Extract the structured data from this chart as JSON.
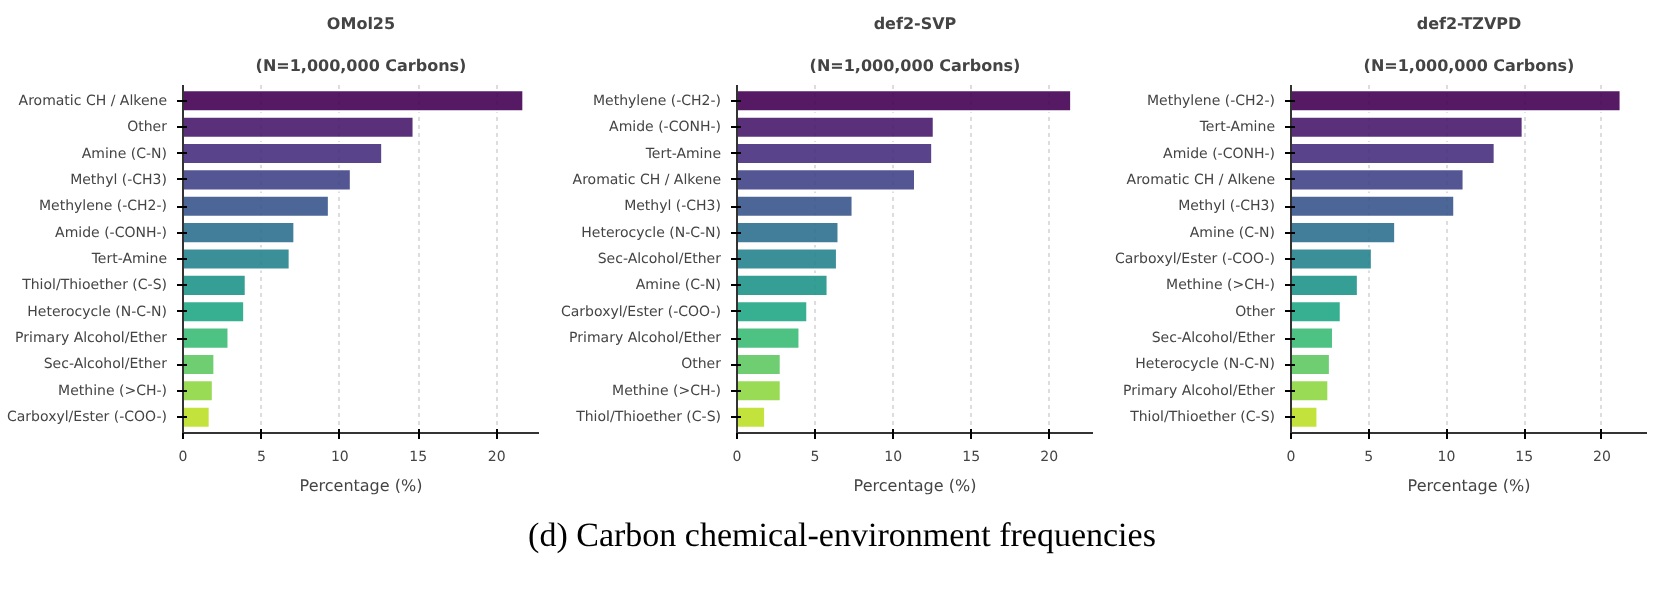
{
  "chart_data": [
    {
      "type": "bar",
      "orientation": "horizontal",
      "title": "OMol25",
      "subtitle": "(N=1,000,000 Carbons)",
      "xlabel": "Percentage (%)",
      "categories": [
        "Aromatic CH / Alkene",
        "Other",
        "Amine (C-N)",
        "Methyl (-CH3)",
        "Methylene (-CH2-)",
        "Amide (-CONH-)",
        "Tert-Amine",
        "Thiol/Thioether (C-S)",
        "Heterocycle (N-C-N)",
        "Primary Alcohol/Ether",
        "Sec-Alcohol/Ether",
        "Methine (>CH-)",
        "Carboxyl/Ester (-COO-)"
      ],
      "values": [
        21.7,
        14.7,
        12.7,
        10.7,
        9.3,
        7.1,
        6.8,
        4.0,
        3.9,
        2.9,
        2.0,
        1.9,
        1.7
      ],
      "colors": [
        "#440154",
        "#481a6c",
        "#472f7d",
        "#414487",
        "#39568c",
        "#2d708e",
        "#25838e",
        "#1f958b",
        "#21a685",
        "#3bbb75",
        "#5ec962",
        "#8fd744",
        "#bddf26"
      ],
      "xlim": [
        0,
        22.7
      ],
      "xticks": [
        0,
        5,
        10,
        15,
        20
      ],
      "grid": "x"
    },
    {
      "type": "bar",
      "orientation": "horizontal",
      "title": "def2-SVP",
      "subtitle": "(N=1,000,000 Carbons)",
      "xlabel": "Percentage (%)",
      "categories": [
        "Methylene (-CH2-)",
        "Amide (-CONH-)",
        "Tert-Amine",
        "Aromatic CH / Alkene",
        "Methyl (-CH3)",
        "Heterocycle (N-C-N)",
        "Sec-Alcohol/Ether",
        "Amine (C-N)",
        "Carboxyl/Ester (-COO-)",
        "Primary Alcohol/Ether",
        "Other",
        "Methine (>CH-)",
        "Thiol/Thioether (C-S)"
      ],
      "values": [
        21.4,
        12.6,
        12.5,
        11.4,
        7.4,
        6.5,
        6.4,
        5.8,
        4.5,
        4.0,
        2.8,
        2.8,
        1.8
      ],
      "colors": [
        "#440154",
        "#481a6c",
        "#472f7d",
        "#414487",
        "#39568c",
        "#2d708e",
        "#25838e",
        "#1f958b",
        "#21a685",
        "#3bbb75",
        "#5ec962",
        "#8fd744",
        "#bddf26"
      ],
      "xlim": [
        0,
        22.8
      ],
      "xticks": [
        0,
        5,
        10,
        15,
        20
      ],
      "grid": "x",
      "annotations": [
        "(d) Carbon chemical-environment frequencies"
      ]
    },
    {
      "type": "bar",
      "orientation": "horizontal",
      "title": "def2-TZVPD",
      "subtitle": "(N=1,000,000 Carbons)",
      "xlabel": "Percentage (%)",
      "categories": [
        "Methylene (-CH2-)",
        "Tert-Amine",
        "Amide (-CONH-)",
        "Aromatic CH / Alkene",
        "Methyl (-CH3)",
        "Amine (C-N)",
        "Carboxyl/Ester (-COO-)",
        "Methine (>CH-)",
        "Other",
        "Sec-Alcohol/Ether",
        "Heterocycle (N-C-N)",
        "Primary Alcohol/Ether",
        "Thiol/Thioether (C-S)"
      ],
      "values": [
        21.2,
        14.9,
        13.1,
        11.1,
        10.5,
        6.7,
        5.2,
        4.3,
        3.2,
        2.7,
        2.5,
        2.4,
        1.7
      ],
      "colors": [
        "#440154",
        "#481a6c",
        "#472f7d",
        "#414487",
        "#39568c",
        "#2d708e",
        "#25838e",
        "#1f958b",
        "#21a685",
        "#3bbb75",
        "#5ec962",
        "#8fd744",
        "#bddf26"
      ],
      "xlim": [
        0,
        22.9
      ],
      "xticks": [
        0,
        5,
        10,
        15,
        20
      ],
      "grid": "x"
    }
  ]
}
